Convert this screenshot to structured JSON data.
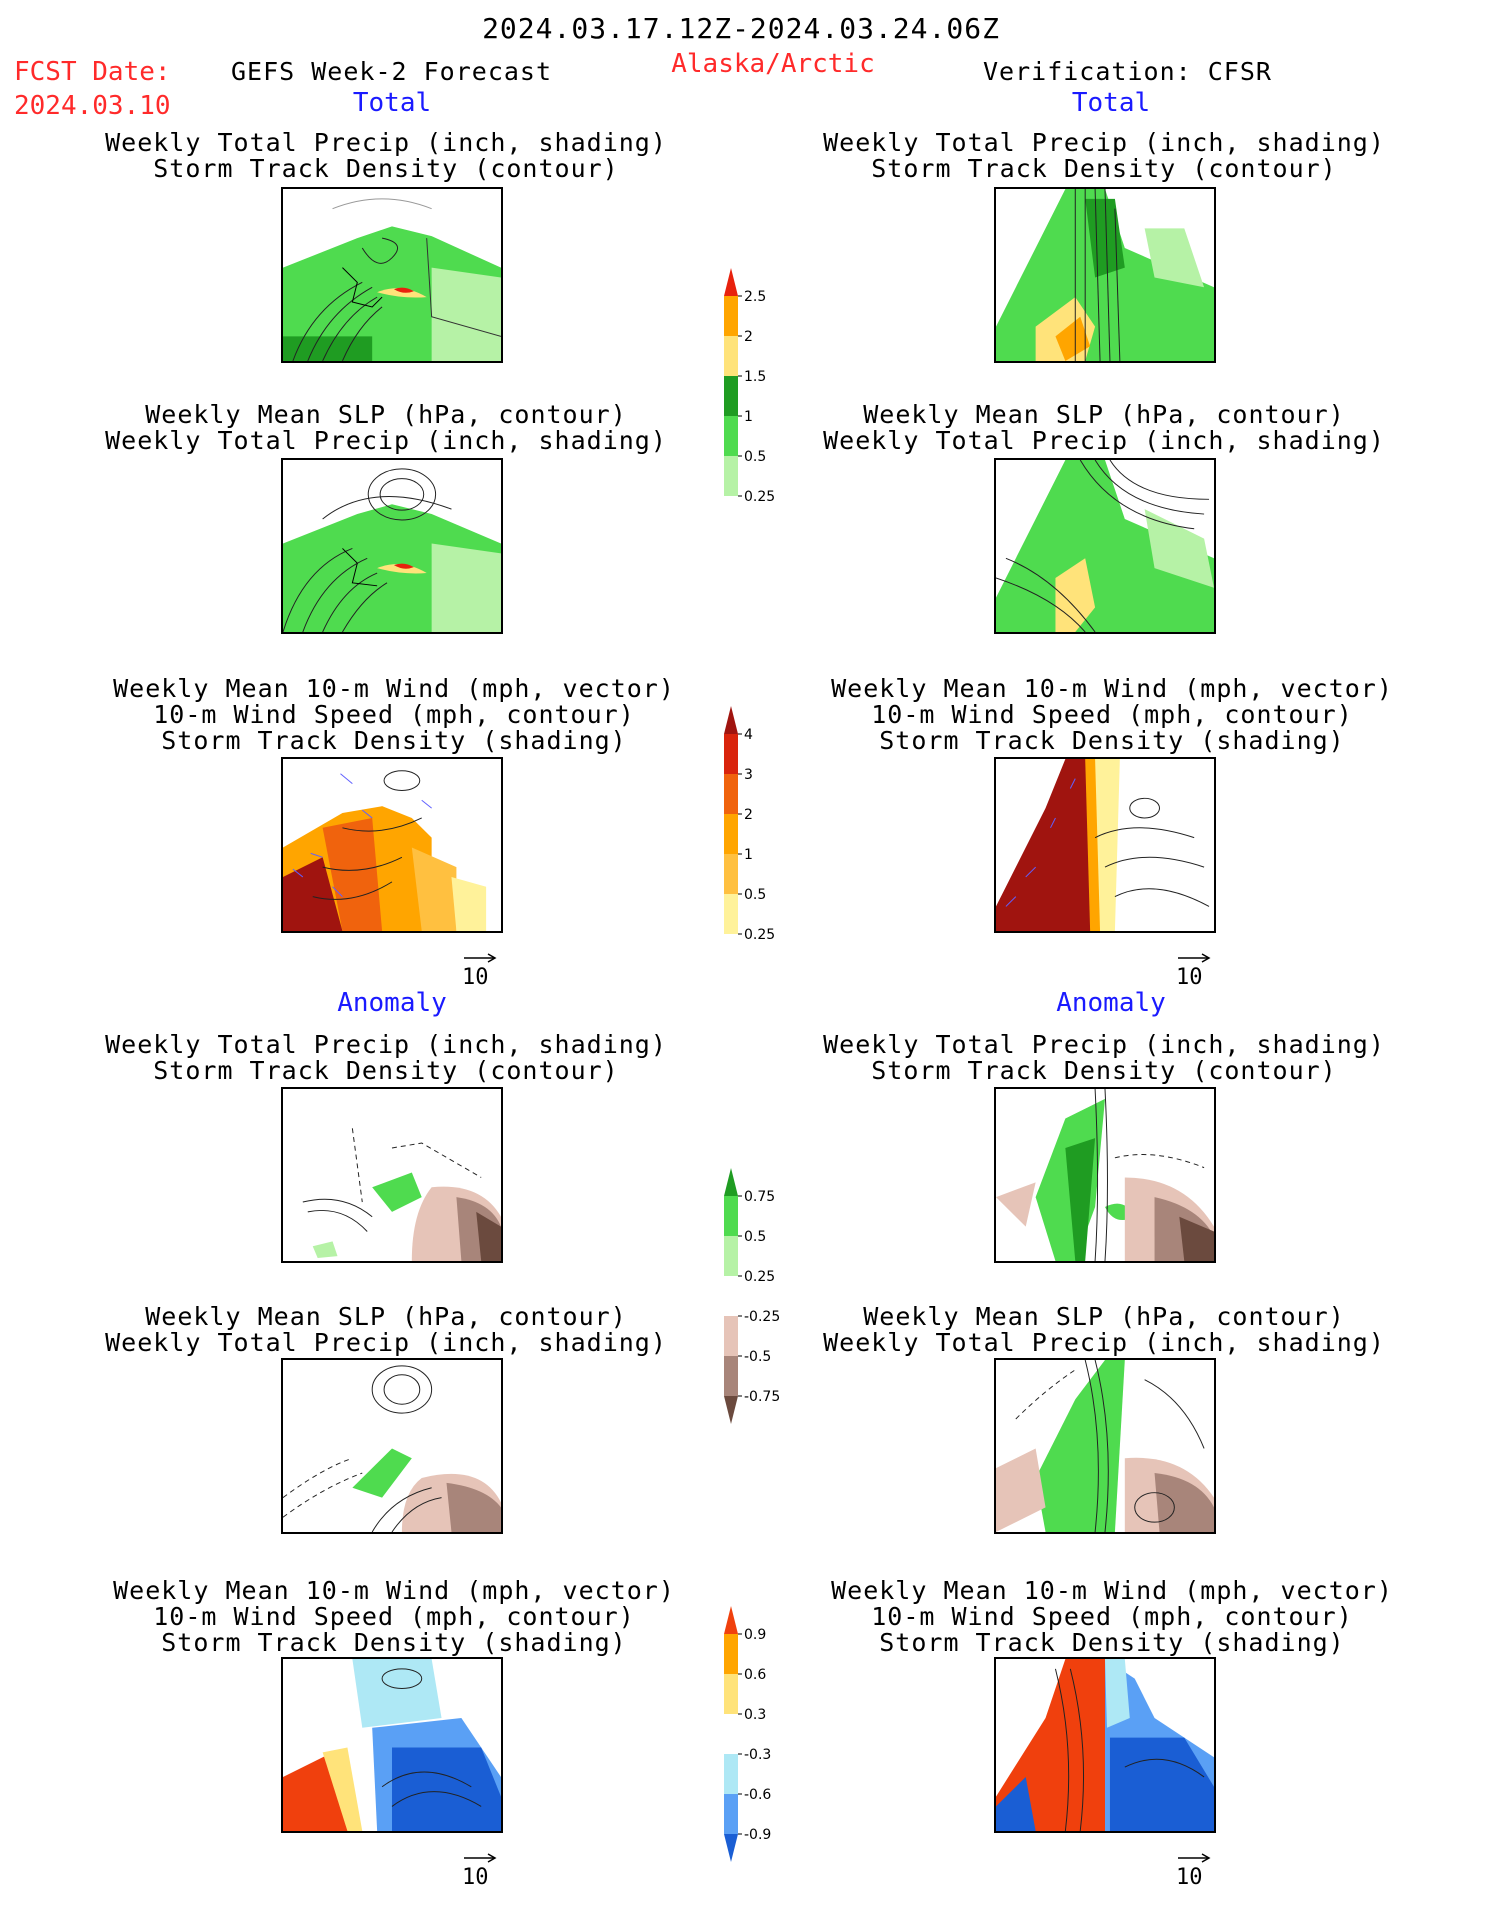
{
  "header": {
    "date_range": "2024.03.17.12Z-2024.03.24.06Z",
    "fcst_label": "FCST Date:",
    "fcst_date": "2024.03.10",
    "model": "GEFS Week-2 Forecast",
    "region": "Alaska/Arctic",
    "verification": "Verification: CFSR"
  },
  "sections": {
    "total": "Total",
    "anomaly": "Anomaly"
  },
  "panel_titles": {
    "precip_track": [
      "Weekly Total Precip (inch, shading)",
      "Storm Track Density (contour)"
    ],
    "slp_precip": [
      "Weekly Mean SLP (hPa, contour)",
      "Weekly Total Precip (inch, shading)"
    ],
    "wind_track": [
      "Weekly Mean 10-m Wind (mph, vector)",
      "10-m Wind Speed (mph, contour)",
      "Storm Track Density (shading)"
    ]
  },
  "wind_reference": "10",
  "colorbars": [
    {
      "id": "precip-total",
      "labels": [
        "2.5",
        "2",
        "1.5",
        "1",
        "0.5",
        "0.25"
      ],
      "colors": [
        "#e8210d",
        "#ffa500",
        "#ffe37a",
        "#1f9c22",
        "#4fdb4f",
        "#b6f2a6",
        "#ffffff"
      ]
    },
    {
      "id": "track-total",
      "labels": [
        "4",
        "3",
        "2",
        "1",
        "0.5",
        "0.25"
      ],
      "colors": [
        "#a0140f",
        "#d9240c",
        "#f0630d",
        "#ffa500",
        "#ffc040",
        "#fff29a",
        "#ffffff"
      ]
    },
    {
      "id": "precip-anom",
      "labels": [
        "0.75",
        "0.5",
        "0.25",
        "-0.25",
        "-0.5",
        "-0.75"
      ],
      "colors": [
        "#1f9c22",
        "#4fdb4f",
        "#b6f2a6",
        "#ffffff",
        "#e6c4b8",
        "#a8857a",
        "#6b4a3e"
      ]
    },
    {
      "id": "track-anom",
      "labels": [
        "0.9",
        "0.6",
        "0.3",
        "-0.3",
        "-0.6",
        "-0.9"
      ],
      "colors": [
        "#f0400d",
        "#ffa500",
        "#ffe37a",
        "#ffffff",
        "#aee8f5",
        "#5aa0f5",
        "#1a5ed4"
      ]
    }
  ]
}
